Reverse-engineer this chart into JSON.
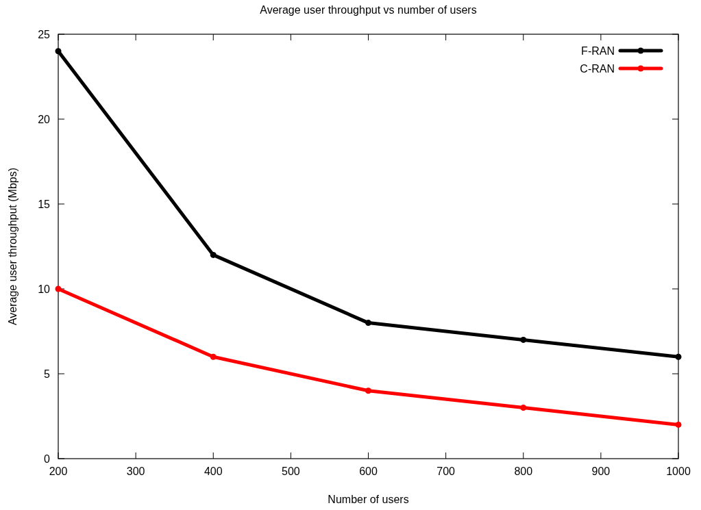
{
  "chart_data": {
    "type": "line",
    "title": "Average user throughput vs number of users",
    "xlabel": "Number of users",
    "ylabel": "Average user throughput (Mbps)",
    "x": [
      200,
      400,
      600,
      800,
      1000
    ],
    "series": [
      {
        "name": "F-RAN",
        "color": "#000000",
        "values": [
          24,
          12,
          8,
          7,
          6
        ]
      },
      {
        "name": "C-RAN",
        "color": "#ff0000",
        "values": [
          10,
          6,
          4,
          3,
          2
        ]
      }
    ],
    "xlim": [
      200,
      1000
    ],
    "xticks": [
      200,
      300,
      400,
      500,
      600,
      700,
      800,
      900,
      1000
    ],
    "ylim": [
      0,
      25
    ],
    "yticks": [
      0,
      5,
      10,
      15,
      20,
      25
    ],
    "grid": false,
    "legend": "top right",
    "marker": "circle",
    "line_style": "solid"
  }
}
